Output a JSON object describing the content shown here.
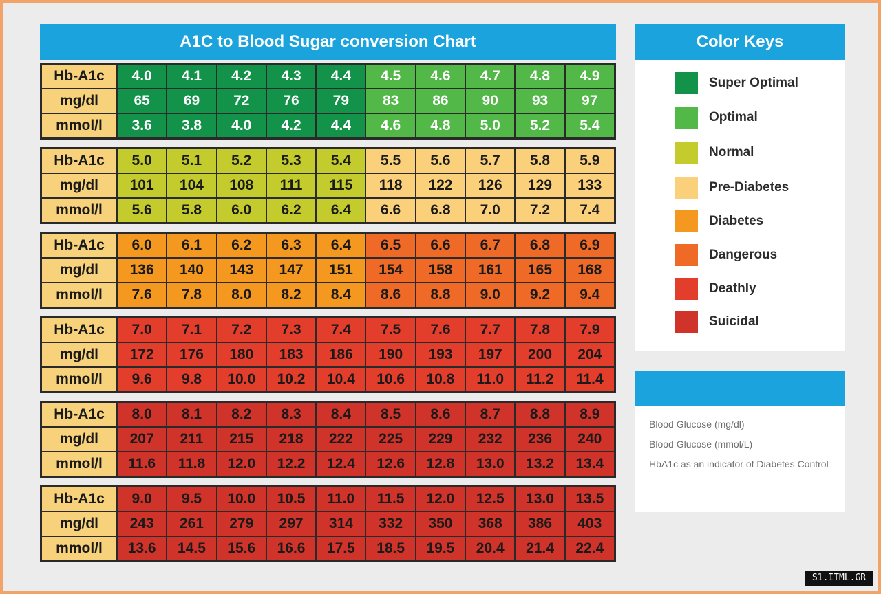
{
  "title": "A1C to Blood Sugar conversion Chart",
  "keys_title": "Color Keys",
  "info_title": "",
  "color_keys": [
    {
      "label": "Super Optimal",
      "color": "#13924a"
    },
    {
      "label": "Optimal",
      "color": "#52b848"
    },
    {
      "label": "Normal",
      "color": "#c3cc2c"
    },
    {
      "label": "Pre-Diabetes",
      "color": "#fbd07a"
    },
    {
      "label": "Diabetes",
      "color": "#f59820"
    },
    {
      "label": "Dangerous",
      "color": "#ee6a26"
    },
    {
      "label": "Deathly",
      "color": "#e33d2c"
    },
    {
      "label": "Suicidal",
      "color": "#d03329"
    }
  ],
  "info_lines": [
    "Blood Glucose (mg/dl)",
    "Blood Glucose (mmol/L)",
    "HbA1c as an indicator of Diabetes Control"
  ],
  "watermark": "S1.ITML.GR",
  "chart_data": {
    "type": "table",
    "title": "A1C to Blood Sugar conversion Chart",
    "row_labels": [
      "Hb-A1c",
      "mg/dl",
      "mmol/l"
    ],
    "blocks": [
      {
        "hba1c": [
          "4.0",
          "4.1",
          "4.2",
          "4.3",
          "4.4",
          "4.5",
          "4.6",
          "4.7",
          "4.8",
          "4.9"
        ],
        "mgdl": [
          "65",
          "69",
          "72",
          "76",
          "79",
          "83",
          "86",
          "90",
          "93",
          "97"
        ],
        "mmol": [
          "3.6",
          "3.8",
          "4.0",
          "4.2",
          "4.4",
          "4.6",
          "4.8",
          "5.0",
          "5.2",
          "5.4"
        ],
        "colors": [
          "#13924a",
          "#13924a",
          "#13924a",
          "#13924a",
          "#13924a",
          "#52b848",
          "#52b848",
          "#52b848",
          "#52b848",
          "#52b848"
        ],
        "text_color": "#ffffff"
      },
      {
        "hba1c": [
          "5.0",
          "5.1",
          "5.2",
          "5.3",
          "5.4",
          "5.5",
          "5.6",
          "5.7",
          "5.8",
          "5.9"
        ],
        "mgdl": [
          "101",
          "104",
          "108",
          "111",
          "115",
          "118",
          "122",
          "126",
          "129",
          "133"
        ],
        "mmol": [
          "5.6",
          "5.8",
          "6.0",
          "6.2",
          "6.4",
          "6.6",
          "6.8",
          "7.0",
          "7.2",
          "7.4"
        ],
        "colors": [
          "#c3cc2c",
          "#c3cc2c",
          "#c3cc2c",
          "#c3cc2c",
          "#c3cc2c",
          "#fbd07a",
          "#fbd07a",
          "#fbd07a",
          "#fbd07a",
          "#fbd07a"
        ],
        "text_color": "#1a1a1a"
      },
      {
        "hba1c": [
          "6.0",
          "6.1",
          "6.2",
          "6.3",
          "6.4",
          "6.5",
          "6.6",
          "6.7",
          "6.8",
          "6.9"
        ],
        "mgdl": [
          "136",
          "140",
          "143",
          "147",
          "151",
          "154",
          "158",
          "161",
          "165",
          "168"
        ],
        "mmol": [
          "7.6",
          "7.8",
          "8.0",
          "8.2",
          "8.4",
          "8.6",
          "8.8",
          "9.0",
          "9.2",
          "9.4"
        ],
        "colors": [
          "#f59820",
          "#f59820",
          "#f59820",
          "#f59820",
          "#f59820",
          "#ee6a26",
          "#ee6a26",
          "#ee6a26",
          "#ee6a26",
          "#ee6a26"
        ],
        "text_color": "#1a1a1a"
      },
      {
        "hba1c": [
          "7.0",
          "7.1",
          "7.2",
          "7.3",
          "7.4",
          "7.5",
          "7.6",
          "7.7",
          "7.8",
          "7.9"
        ],
        "mgdl": [
          "172",
          "176",
          "180",
          "183",
          "186",
          "190",
          "193",
          "197",
          "200",
          "204"
        ],
        "mmol": [
          "9.6",
          "9.8",
          "10.0",
          "10.2",
          "10.4",
          "10.6",
          "10.8",
          "11.0",
          "11.2",
          "11.4"
        ],
        "colors": [
          "#e33d2c",
          "#e33d2c",
          "#e33d2c",
          "#e33d2c",
          "#e33d2c",
          "#e33d2c",
          "#e33d2c",
          "#e33d2c",
          "#e33d2c",
          "#e33d2c"
        ],
        "text_color": "#1a1a1a"
      },
      {
        "hba1c": [
          "8.0",
          "8.1",
          "8.2",
          "8.3",
          "8.4",
          "8.5",
          "8.6",
          "8.7",
          "8.8",
          "8.9"
        ],
        "mgdl": [
          "207",
          "211",
          "215",
          "218",
          "222",
          "225",
          "229",
          "232",
          "236",
          "240"
        ],
        "mmol": [
          "11.6",
          "11.8",
          "12.0",
          "12.2",
          "12.4",
          "12.6",
          "12.8",
          "13.0",
          "13.2",
          "13.4"
        ],
        "colors": [
          "#d03329",
          "#d03329",
          "#d03329",
          "#d03329",
          "#d03329",
          "#d03329",
          "#d03329",
          "#d03329",
          "#d03329",
          "#d03329"
        ],
        "text_color": "#1a1a1a"
      },
      {
        "hba1c": [
          "9.0",
          "9.5",
          "10.0",
          "10.5",
          "11.0",
          "11.5",
          "12.0",
          "12.5",
          "13.0",
          "13.5"
        ],
        "mgdl": [
          "243",
          "261",
          "279",
          "297",
          "314",
          "332",
          "350",
          "368",
          "386",
          "403"
        ],
        "mmol": [
          "13.6",
          "14.5",
          "15.6",
          "16.6",
          "17.5",
          "18.5",
          "19.5",
          "20.4",
          "21.4",
          "22.4"
        ],
        "colors": [
          "#d03329",
          "#d03329",
          "#d03329",
          "#d03329",
          "#d03329",
          "#d03329",
          "#d03329",
          "#d03329",
          "#d03329",
          "#d03329"
        ],
        "text_color": "#1a1a1a"
      }
    ]
  }
}
